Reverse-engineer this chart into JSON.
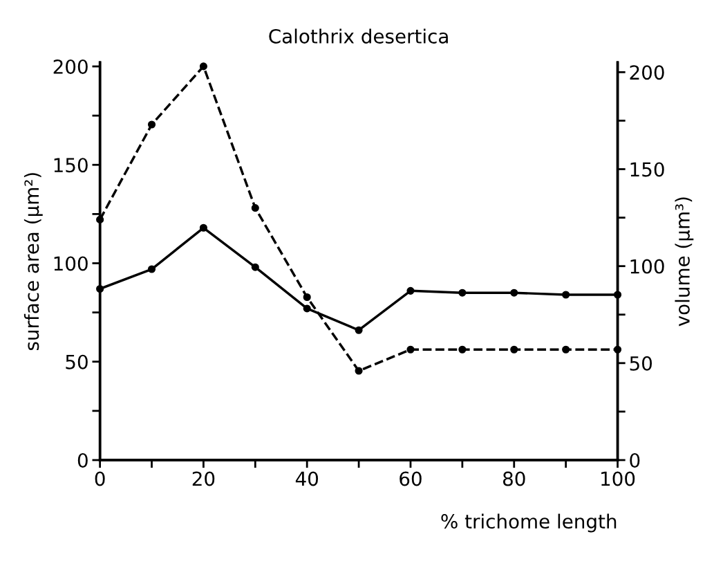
{
  "chart_data": {
    "type": "line",
    "title": "Calothrix desertica",
    "xlabel": "% trichome length",
    "ylabel": "surface area (µm²)",
    "y2label": "volume (µm³)",
    "x": [
      0,
      10,
      20,
      30,
      40,
      50,
      60,
      70,
      80,
      90,
      100
    ],
    "series": [
      {
        "color": "#000000",
        "line_style": "solid",
        "values": [
          87,
          97,
          118,
          98,
          77,
          66,
          86,
          85,
          85,
          84,
          84
        ]
      },
      {
        "color": "#000000",
        "line_style": "dashed",
        "axis": "y2",
        "values": [
          124,
          173,
          203,
          130,
          84,
          46,
          57,
          57,
          57,
          57,
          57
        ]
      }
    ],
    "xlim": [
      0,
      100
    ],
    "ylim": [
      0,
      202
    ],
    "y2lim": [
      0,
      205
    ],
    "xticks": [
      0,
      20,
      40,
      60,
      80,
      100
    ],
    "yticks": [
      0,
      50,
      100,
      150,
      200
    ],
    "y2ticks": [
      0,
      50,
      100,
      150,
      200
    ],
    "marker": "circle"
  }
}
